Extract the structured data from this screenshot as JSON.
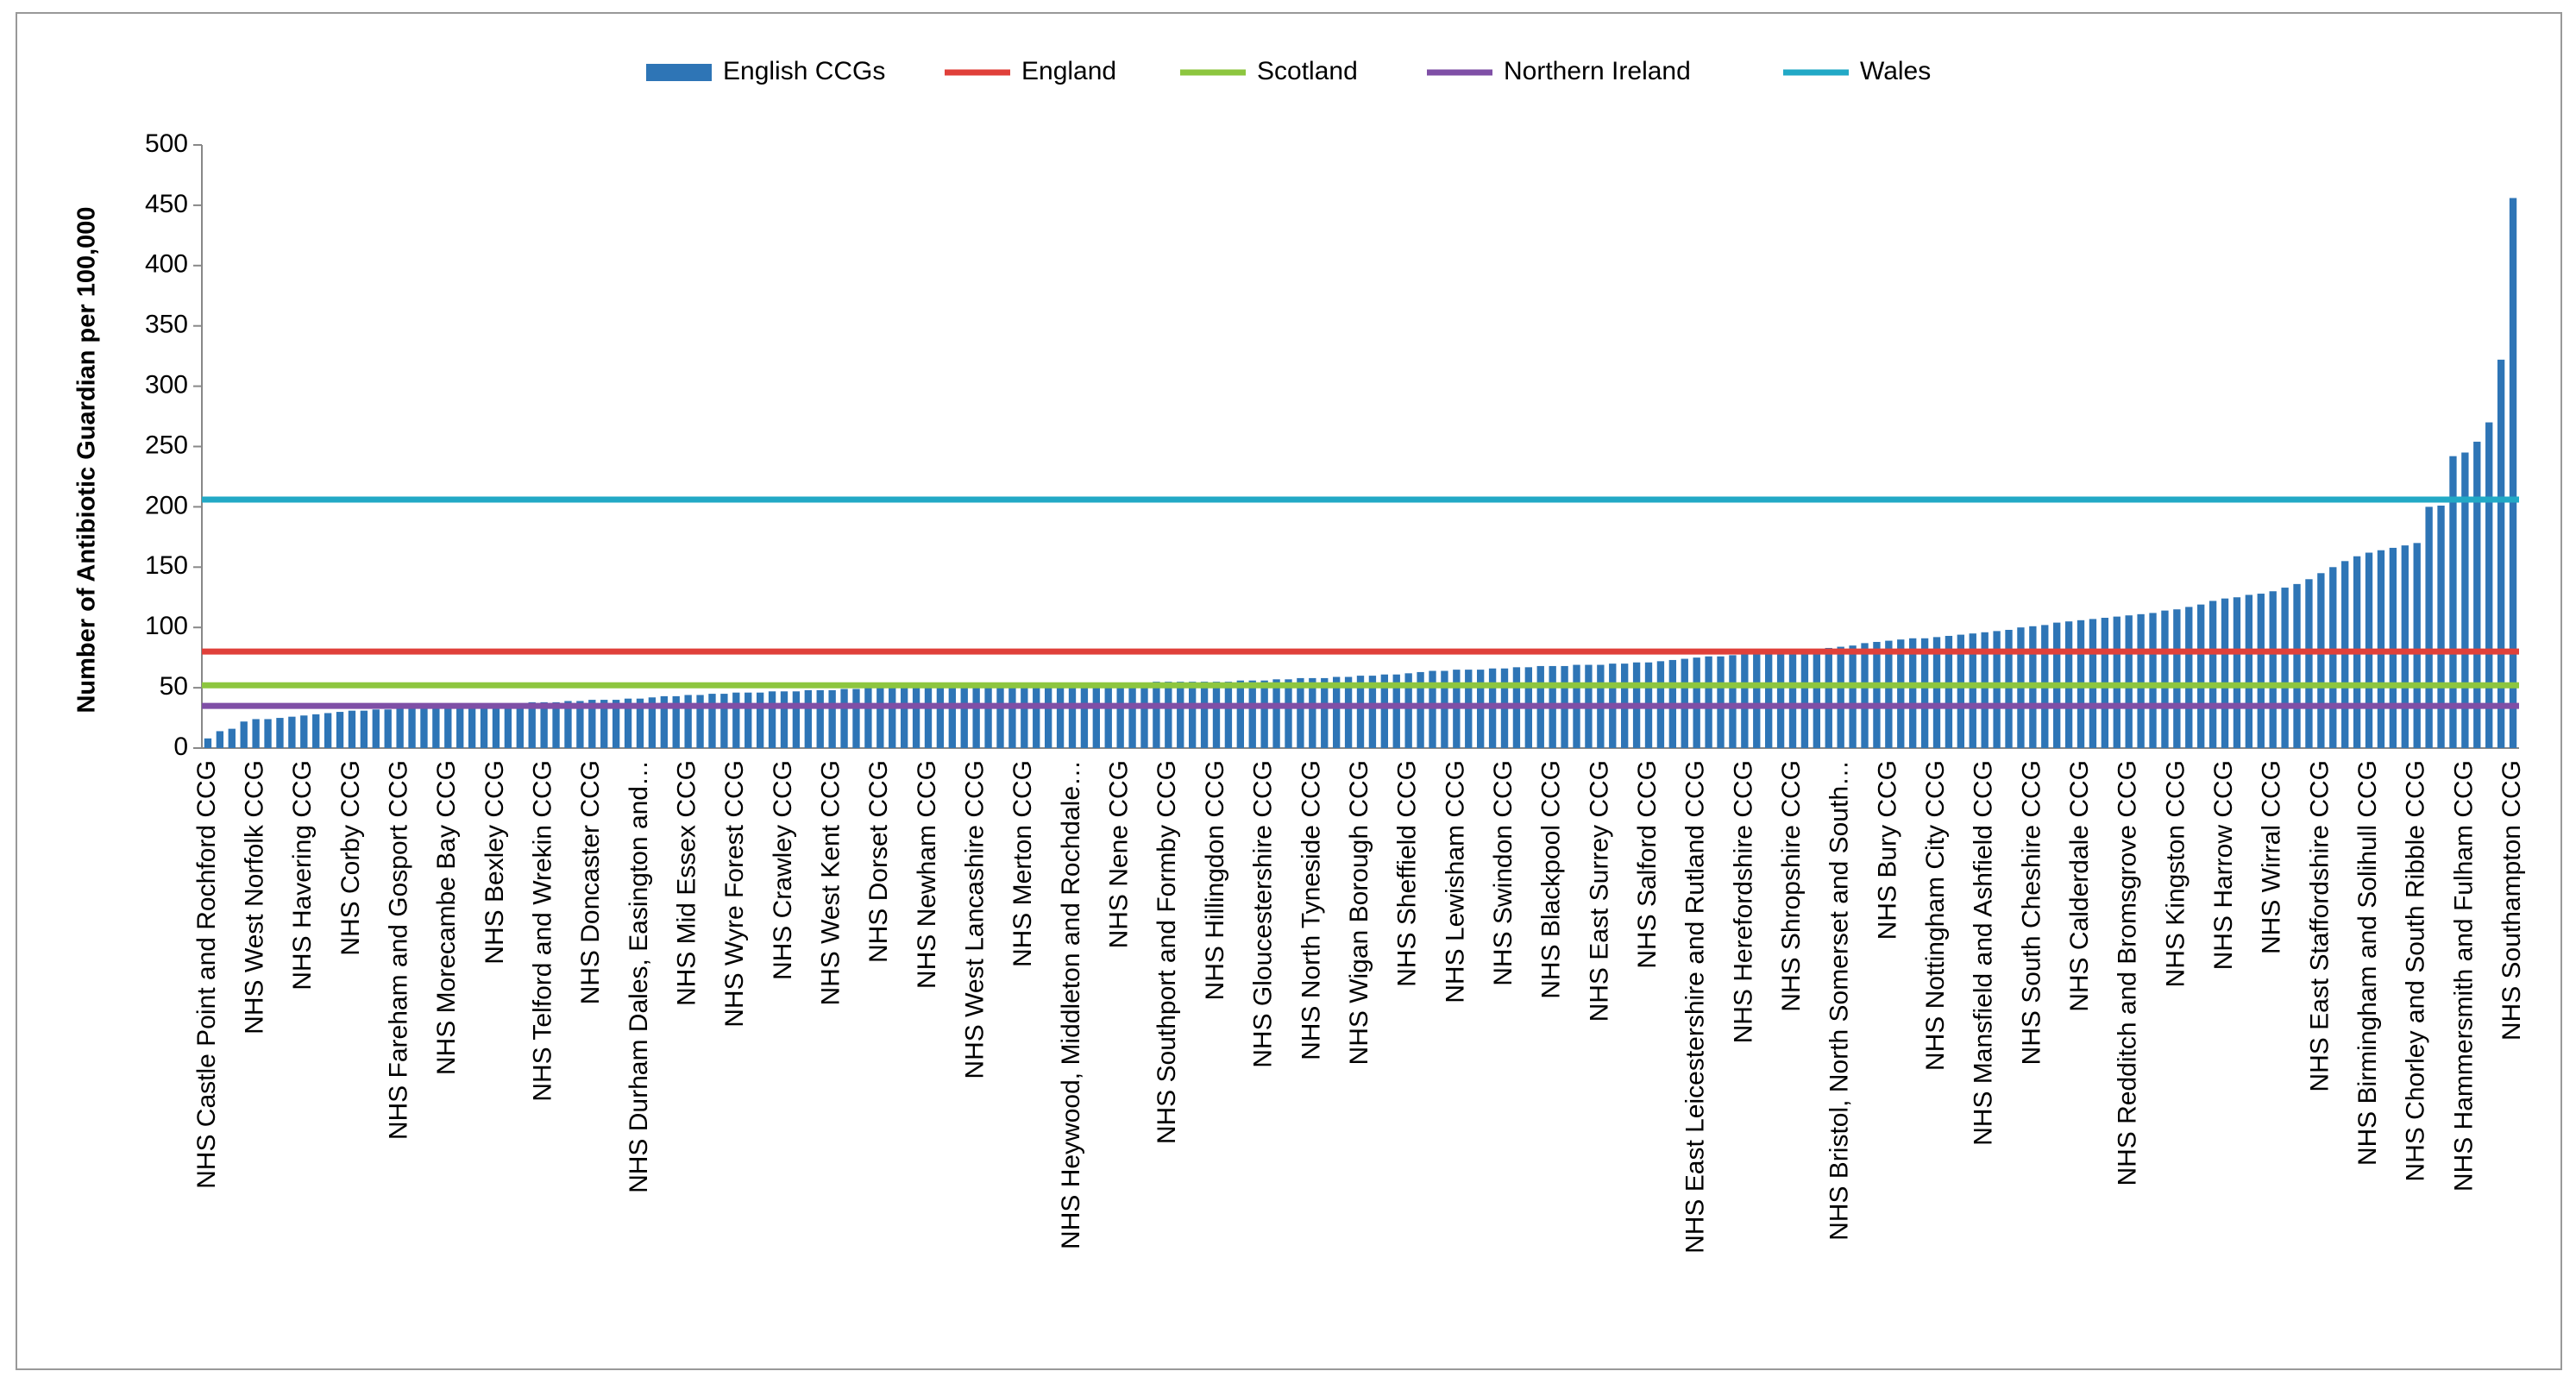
{
  "chart_data": {
    "type": "bar",
    "y_label": "Number of Antibiotic Guardian per 100,000",
    "ylim": [
      0,
      500
    ],
    "yticks": [
      0,
      50,
      100,
      150,
      200,
      250,
      300,
      350,
      400,
      450,
      500
    ],
    "grid": false,
    "categories": [
      "NHS Castle Point and Rochford CCG",
      null,
      null,
      null,
      "NHS West Norfolk CCG",
      null,
      null,
      null,
      "NHS Havering CCG",
      null,
      null,
      null,
      "NHS Corby CCG",
      null,
      null,
      null,
      "NHS Fareham and Gosport CCG",
      null,
      null,
      null,
      "NHS Morecambe Bay CCG",
      null,
      null,
      null,
      "NHS Bexley CCG",
      null,
      null,
      null,
      "NHS Telford and Wrekin CCG",
      null,
      null,
      null,
      "NHS Doncaster CCG",
      null,
      null,
      null,
      "NHS Durham Dales, Easington and…",
      null,
      null,
      null,
      "NHS Mid Essex CCG",
      null,
      null,
      null,
      "NHS Wyre Forest CCG",
      null,
      null,
      null,
      "NHS Crawley CCG",
      null,
      null,
      null,
      "NHS West Kent CCG",
      null,
      null,
      null,
      "NHS Dorset CCG",
      null,
      null,
      null,
      "NHS Newham CCG",
      null,
      null,
      null,
      "NHS West Lancashire CCG",
      null,
      null,
      null,
      "NHS Merton CCG",
      null,
      null,
      null,
      "NHS Heywood, Middleton and Rochdale…",
      null,
      null,
      null,
      "NHS Nene CCG",
      null,
      null,
      null,
      "NHS Southport and Formby CCG",
      null,
      null,
      null,
      "NHS Hillingdon CCG",
      null,
      null,
      null,
      "NHS Gloucestershire CCG",
      null,
      null,
      null,
      "NHS North Tyneside CCG",
      null,
      null,
      null,
      "NHS Wigan Borough CCG",
      null,
      null,
      null,
      "NHS Sheffield CCG",
      null,
      null,
      null,
      "NHS Lewisham CCG",
      null,
      null,
      null,
      "NHS Swindon CCG",
      null,
      null,
      null,
      "NHS Blackpool CCG",
      null,
      null,
      null,
      "NHS East Surrey CCG",
      null,
      null,
      null,
      "NHS Salford CCG",
      null,
      null,
      null,
      "NHS East Leicestershire and Rutland CCG",
      null,
      null,
      null,
      "NHS Herefordshire CCG",
      null,
      null,
      null,
      "NHS Shropshire CCG",
      null,
      null,
      null,
      "NHS Bristol, North Somerset and South…",
      null,
      null,
      null,
      "NHS Bury CCG",
      null,
      null,
      null,
      "NHS Nottingham City CCG",
      null,
      null,
      null,
      "NHS Mansfield and Ashfield CCG",
      null,
      null,
      null,
      "NHS South Cheshire CCG",
      null,
      null,
      null,
      "NHS Calderdale CCG",
      null,
      null,
      null,
      "NHS Redditch and Bromsgrove CCG",
      null,
      null,
      null,
      "NHS Kingston CCG",
      null,
      null,
      null,
      "NHS Harrow CCG",
      null,
      null,
      null,
      "NHS Wirral CCG",
      null,
      null,
      null,
      "NHS East Staffordshire CCG",
      null,
      null,
      null,
      "NHS Birmingham and Solihull CCG",
      null,
      null,
      null,
      "NHS Chorley and South Ribble CCG",
      null,
      null,
      null,
      "NHS Hammersmith and Fulham CCG",
      null,
      null,
      null,
      "NHS Southampton CCG"
    ],
    "series": [
      {
        "name": "English CCGs",
        "color": "#2e75b6",
        "values": [
          8,
          14,
          16,
          22,
          24,
          24,
          25,
          26,
          27,
          28,
          29,
          30,
          31,
          31,
          32,
          32,
          33,
          33,
          34,
          34,
          35,
          35,
          35,
          36,
          36,
          37,
          37,
          38,
          38,
          38,
          39,
          39,
          40,
          40,
          40,
          41,
          41,
          42,
          43,
          43,
          44,
          44,
          45,
          45,
          46,
          46,
          46,
          47,
          47,
          47,
          48,
          48,
          48,
          49,
          49,
          50,
          50,
          50,
          51,
          51,
          51,
          51,
          52,
          52,
          52,
          52,
          52,
          52,
          52,
          53,
          53,
          53,
          53,
          53,
          53,
          53,
          53,
          54,
          54,
          55,
          55,
          55,
          55,
          55,
          55,
          55,
          56,
          56,
          56,
          57,
          57,
          58,
          58,
          58,
          59,
          59,
          60,
          60,
          61,
          61,
          62,
          63,
          64,
          64,
          65,
          65,
          65,
          66,
          66,
          67,
          67,
          68,
          68,
          68,
          69,
          69,
          69,
          70,
          70,
          71,
          71,
          72,
          73,
          74,
          75,
          76,
          76,
          77,
          78,
          78,
          79,
          80,
          80,
          81,
          82,
          83,
          84,
          85,
          87,
          88,
          89,
          90,
          91,
          91,
          92,
          93,
          94,
          95,
          96,
          97,
          98,
          100,
          101,
          102,
          104,
          105,
          106,
          107,
          108,
          109,
          110,
          111,
          112,
          114,
          115,
          117,
          119,
          122,
          124,
          125,
          127,
          128,
          130,
          133,
          136,
          140,
          145,
          150,
          155,
          159,
          162,
          164,
          166,
          168,
          170,
          200,
          201,
          242,
          245,
          254,
          270,
          322,
          456
        ]
      },
      {
        "name": "England",
        "color": "#e0403a",
        "type": "hline",
        "value": 80
      },
      {
        "name": "Scotland",
        "color": "#8dc63f",
        "type": "hline",
        "value": 52
      },
      {
        "name": "Northern Ireland",
        "color": "#7f4fa6",
        "type": "hline",
        "value": 35
      },
      {
        "name": "Wales",
        "color": "#22a9c6",
        "type": "hline",
        "value": 206
      }
    ]
  }
}
